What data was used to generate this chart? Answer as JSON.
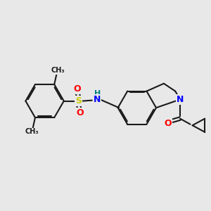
{
  "bg_color": "#e8e8e8",
  "bond_color": "#1a1a1a",
  "bond_width": 1.5,
  "atom_colors": {
    "N": "#0000ff",
    "O": "#ff0000",
    "S": "#cccc00",
    "H": "#008080",
    "C": "#1a1a1a"
  },
  "font_size_atom": 9
}
